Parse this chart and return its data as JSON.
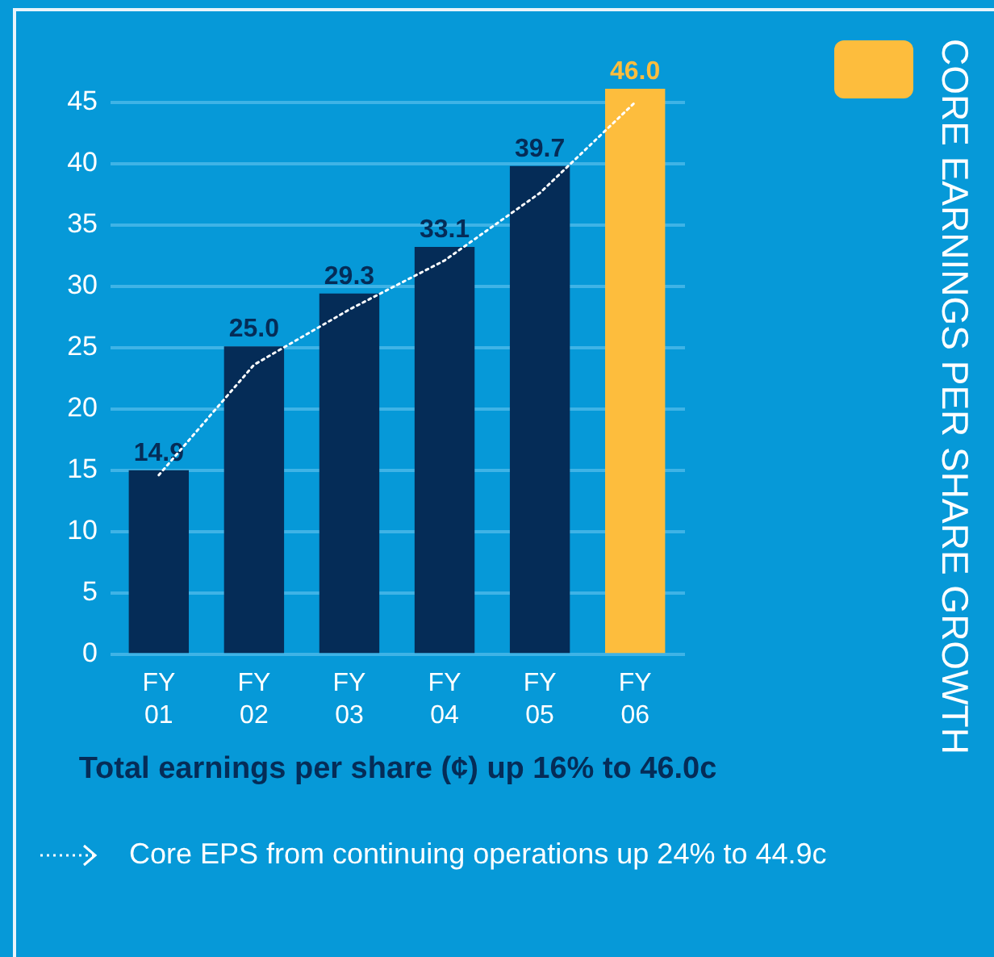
{
  "chart_data": {
    "type": "bar",
    "title": "CORE EARNINGS PER SHARE GROWTH",
    "xlabel": "Total earnings per share (¢) up 16% to 46.0c",
    "categories": [
      "FY\n01",
      "FY\n02",
      "FY\n03",
      "FY\n04",
      "FY\n05",
      "FY\n06"
    ],
    "series": [
      {
        "colors": [
          "#052c57",
          "#052c57",
          "#052c57",
          "#052c57",
          "#052c57",
          "#fdbd3d"
        ],
        "values": [
          14.9,
          25.0,
          29.3,
          33.1,
          39.7,
          46.0
        ],
        "value_labels": [
          "14.9",
          "25.0",
          "29.3",
          "33.1",
          "39.7",
          "46.0"
        ]
      },
      {
        "type": "line",
        "name": "Core EPS from continuing operations up 24% to 44.9c",
        "color": "#ffffff",
        "line_style": "dotted",
        "values": [
          14.5,
          23.5,
          28,
          32,
          37.5,
          44.9
        ]
      }
    ],
    "ylim": [
      0,
      46
    ],
    "yticks": [
      0,
      5,
      10,
      15,
      20,
      25,
      30,
      35,
      40,
      45
    ],
    "grid": "y",
    "legend": "bottom"
  }
}
